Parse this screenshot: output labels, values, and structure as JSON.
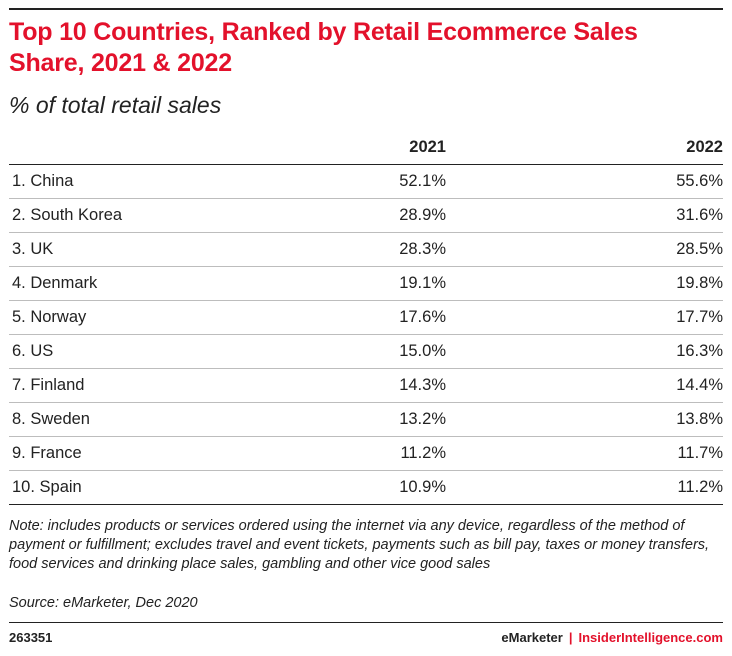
{
  "chart_data": {
    "type": "table",
    "title": "Top 10 Countries, Ranked by Retail Ecommerce Sales Share, 2021 & 2022",
    "subtitle": "% of total retail sales",
    "columns": [
      "",
      "2021",
      "2022"
    ],
    "rows": [
      {
        "country": "1. China",
        "v2021": "52.1%",
        "v2022": "55.6%"
      },
      {
        "country": "2. South Korea",
        "v2021": "28.9%",
        "v2022": "31.6%"
      },
      {
        "country": "3. UK",
        "v2021": "28.3%",
        "v2022": "28.5%"
      },
      {
        "country": "4. Denmark",
        "v2021": "19.1%",
        "v2022": "19.8%"
      },
      {
        "country": "5. Norway",
        "v2021": "17.6%",
        "v2022": "17.7%"
      },
      {
        "country": "6. US",
        "v2021": "15.0%",
        "v2022": "16.3%"
      },
      {
        "country": "7. Finland",
        "v2021": "14.3%",
        "v2022": "14.4%"
      },
      {
        "country": "8. Sweden",
        "v2021": "13.2%",
        "v2022": "13.8%"
      },
      {
        "country": "9. France",
        "v2021": "11.2%",
        "v2022": "11.7%"
      },
      {
        "country": "10. Spain",
        "v2021": "10.9%",
        "v2022": "11.2%"
      }
    ],
    "note": "Note: includes products or services ordered using the internet via any device, regardless of the method of payment or fulfillment; excludes travel and event tickets, payments such as bill pay, taxes or money transfers, food services and drinking place sales, gambling and other vice good sales",
    "source": "Source: eMarketer, Dec 2020"
  },
  "footer": {
    "chart_id": "263351",
    "brand_1": "eMarketer",
    "separator": "|",
    "brand_2": "InsiderIntelligence.com"
  },
  "colors": {
    "title": "#e3112b",
    "text": "#222222",
    "row_divider": "#bdbdbd"
  }
}
